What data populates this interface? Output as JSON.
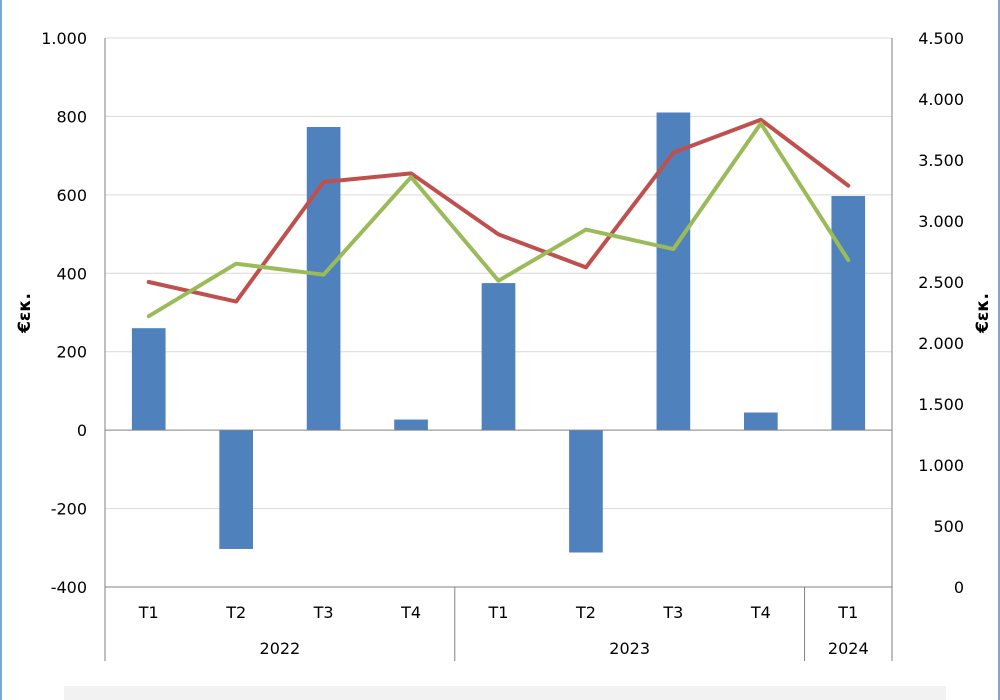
{
  "chart_data": {
    "type": "bar+line",
    "title": "",
    "ylabel_left": "€εκ.",
    "ylabel_right": "€εκ.",
    "categories": [
      "T1",
      "T2",
      "T3",
      "T4",
      "T1",
      "T2",
      "T3",
      "T4",
      "T1"
    ],
    "groups": [
      {
        "label": "2022",
        "count": 4
      },
      {
        "label": "2023",
        "count": 4
      },
      {
        "label": "2024",
        "count": 1
      }
    ],
    "left_axis": {
      "min": -400,
      "max": 1000,
      "ticks": [
        -400,
        -200,
        0,
        200,
        400,
        600,
        800,
        1000
      ],
      "tick_labels": [
        "-400",
        "-200",
        "0",
        "200",
        "400",
        "600",
        "800",
        "1.000"
      ]
    },
    "right_axis": {
      "min": 0,
      "max": 4500,
      "ticks": [
        0,
        500,
        1000,
        1500,
        2000,
        2500,
        3000,
        3500,
        4000,
        4500
      ],
      "tick_labels": [
        "0",
        "500",
        "1.000",
        "1.500",
        "2.000",
        "2.500",
        "3.000",
        "3.500",
        "4.000",
        "4.500"
      ]
    },
    "series": [
      {
        "type": "bar",
        "axis": "left",
        "color": "#4f81bd",
        "values": [
          260,
          -303,
          773,
          27,
          375,
          -312,
          810,
          45,
          597
        ]
      },
      {
        "type": "line",
        "axis": "right",
        "color": "#c0504d",
        "values": [
          2500,
          2340,
          3320,
          3390,
          2890,
          2620,
          3560,
          3830,
          3290
        ]
      },
      {
        "type": "line",
        "axis": "right",
        "color": "#9bbb59",
        "values": [
          2220,
          2650,
          2560,
          3360,
          2510,
          2930,
          2770,
          3800,
          2680
        ]
      }
    ],
    "grid": true,
    "colors": {
      "grid": "#d9d9d9",
      "axis": "#808080"
    }
  }
}
